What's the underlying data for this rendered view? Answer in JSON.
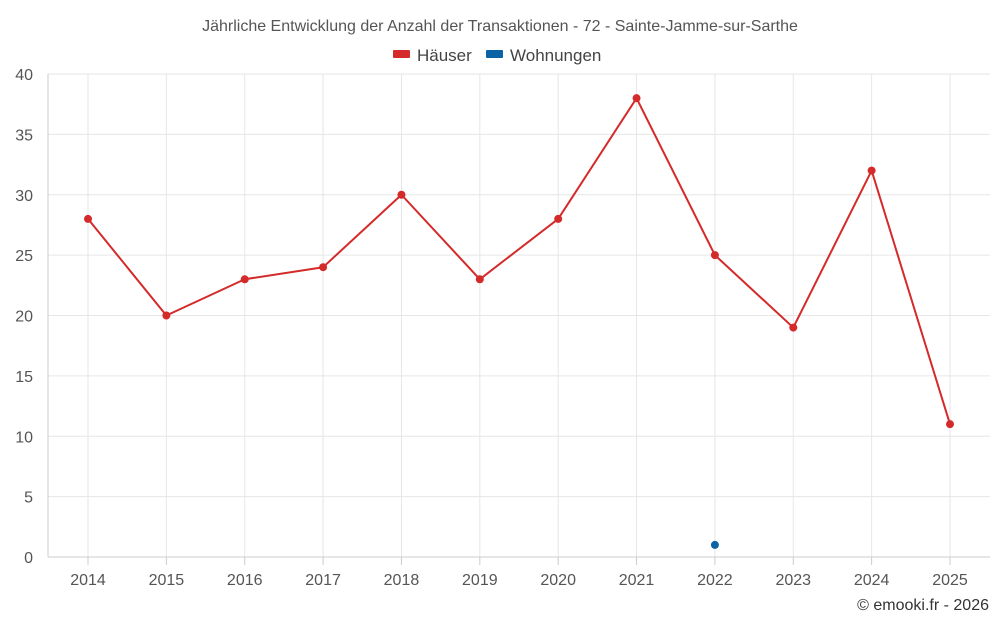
{
  "chart_data": {
    "type": "line",
    "title": "Jährliche Entwicklung der Anzahl der Transaktionen - 72 - Sainte-Jamme-sur-Sarthe",
    "categories": [
      "2014",
      "2015",
      "2016",
      "2017",
      "2018",
      "2019",
      "2020",
      "2021",
      "2022",
      "2023",
      "2024",
      "2025"
    ],
    "series": [
      {
        "name": "Häuser",
        "color": "#d42a2a",
        "values": [
          28,
          20,
          23,
          24,
          30,
          23,
          28,
          38,
          25,
          19,
          32,
          11
        ]
      },
      {
        "name": "Wohnungen",
        "color": "#0b63a5",
        "values": [
          null,
          null,
          null,
          null,
          null,
          null,
          null,
          null,
          1,
          null,
          null,
          null
        ]
      }
    ],
    "ylim": [
      0,
      40
    ],
    "yticks": [
      "0",
      "5",
      "10",
      "15",
      "20",
      "25",
      "30",
      "35",
      "40"
    ],
    "grid": true,
    "legend_position": "top-center",
    "xlabel": "",
    "ylabel": ""
  },
  "credit": "© emooki.fr - 2026"
}
